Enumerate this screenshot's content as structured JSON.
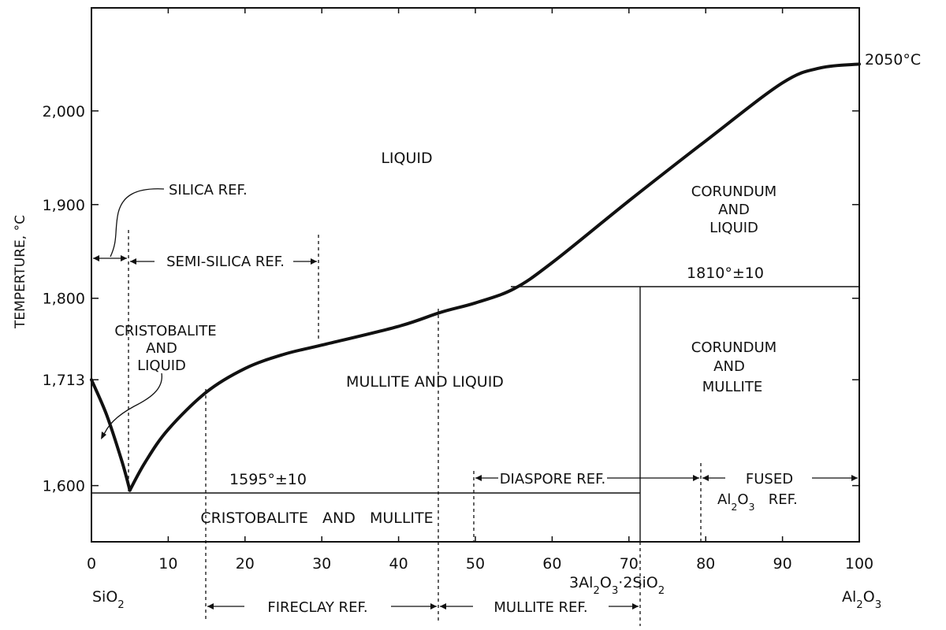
{
  "axes": {
    "ylabel": "TEMPERTURE, °C",
    "x_ticks": [
      {
        "value": 0,
        "label": "0"
      },
      {
        "value": 10,
        "label": "10"
      },
      {
        "value": 20,
        "label": "20"
      },
      {
        "value": 30,
        "label": "30"
      },
      {
        "value": 40,
        "label": "40"
      },
      {
        "value": 50,
        "label": "50"
      },
      {
        "value": 60,
        "label": "60"
      },
      {
        "value": 70,
        "label": "70"
      },
      {
        "value": 80,
        "label": "80"
      },
      {
        "value": 90,
        "label": "90"
      },
      {
        "value": 100,
        "label": "100"
      }
    ],
    "y_ticks": [
      {
        "value": 1600,
        "label": "1,600"
      },
      {
        "value": 1713,
        "label": "1,713"
      },
      {
        "value": 1800,
        "label": "1,800"
      },
      {
        "value": 1900,
        "label": "1,900"
      },
      {
        "value": 2000,
        "label": "2,000"
      }
    ],
    "x_end_labels": {
      "left": "SiO2",
      "right": "Al2O3"
    },
    "xlim": [
      0,
      100
    ],
    "ylim": [
      1540,
      2110
    ]
  },
  "liquidus": {
    "silica_branch": [
      [
        0,
        1713
      ],
      [
        2,
        1675
      ],
      [
        4,
        1625
      ],
      [
        5,
        1595
      ]
    ],
    "mullite_branch": [
      [
        5,
        1595
      ],
      [
        7,
        1625
      ],
      [
        10,
        1660
      ],
      [
        15,
        1700
      ],
      [
        20,
        1725
      ],
      [
        25,
        1740
      ],
      [
        30,
        1750
      ],
      [
        40,
        1770
      ],
      [
        45.5,
        1785
      ],
      [
        50,
        1795
      ],
      [
        55,
        1810
      ],
      [
        60,
        1838
      ],
      [
        70,
        1904
      ],
      [
        80,
        1968
      ],
      [
        90,
        2030
      ],
      [
        95,
        2046
      ],
      [
        100,
        2050
      ]
    ]
  },
  "regions": {
    "liquid": "LIQUID",
    "cristobalite_liquid": [
      "CRISTOBALITE",
      "AND",
      "LIQUID"
    ],
    "mullite_liquid": "MULLITE AND LIQUID",
    "corundum_liquid": [
      "CORUNDUM",
      "AND",
      "LIQUID"
    ],
    "corundum_mullite": [
      "CORUNDUM",
      "AND",
      "MULLITE"
    ],
    "cristobalite_mullite": "CRISTOBALITE   AND   MULLITE"
  },
  "isotherms": {
    "eutectic_label": "1595°±10",
    "eutectic_temp": 1595,
    "corundum_label": "1810°±10",
    "corundum_temp": 1810,
    "melting_label": "2050°C"
  },
  "compositions": {
    "mullite_formula": "3Al2O3·2SiO2",
    "mullite_x": 71.8
  },
  "refractories": {
    "silica": "SILICA REF.",
    "semi_silica": "SEMI-SILICA REF.",
    "diaspore": "DIASPORE REF.",
    "fused_line1": "FUSED",
    "fused_line2": "Al2O3   REF.",
    "fireclay": "FIRECLAY REF.",
    "mullite": "MULLITE REF."
  }
}
